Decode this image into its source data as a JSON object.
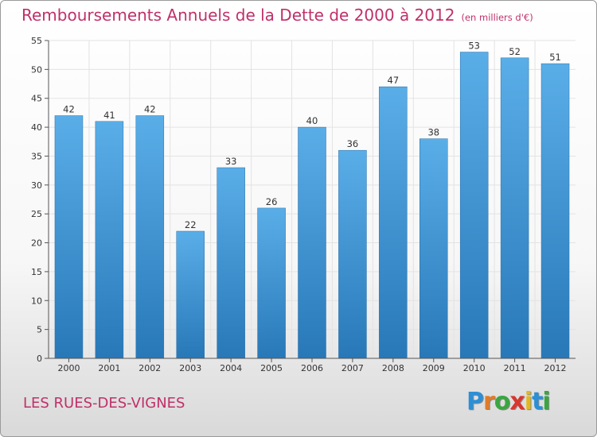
{
  "title": "Remboursements Annuels de la Dette de 2000 à 2012",
  "title_unit": "(en milliers d'€)",
  "commune": "LES RUES-DES-VIGNES",
  "logo": {
    "letters": [
      "P",
      "r",
      "o",
      "x",
      "i",
      "t",
      "i"
    ],
    "colors": [
      "#2d8fd5",
      "#e07b2a",
      "#3aa640",
      "#d8372f",
      "#e3b81f",
      "#2d8fd5",
      "#3aa640"
    ]
  },
  "colors": {
    "bar_top": "#5aaee8",
    "bar_bottom": "#2878b8",
    "grid": "#e3e3e3",
    "axis": "#555555"
  },
  "chart_data": {
    "type": "bar",
    "title": "Remboursements Annuels de la Dette de 2000 à 2012",
    "xlabel": "",
    "ylabel": "",
    "categories": [
      "2000",
      "2001",
      "2002",
      "2003",
      "2004",
      "2005",
      "2006",
      "2007",
      "2008",
      "2009",
      "2010",
      "2011",
      "2012"
    ],
    "values": [
      42,
      41,
      42,
      22,
      33,
      26,
      40,
      36,
      47,
      38,
      53,
      52,
      51
    ],
    "ylim": [
      0,
      55
    ],
    "yticks": [
      0,
      5,
      10,
      15,
      20,
      25,
      30,
      35,
      40,
      45,
      50,
      55
    ],
    "grid": true
  }
}
